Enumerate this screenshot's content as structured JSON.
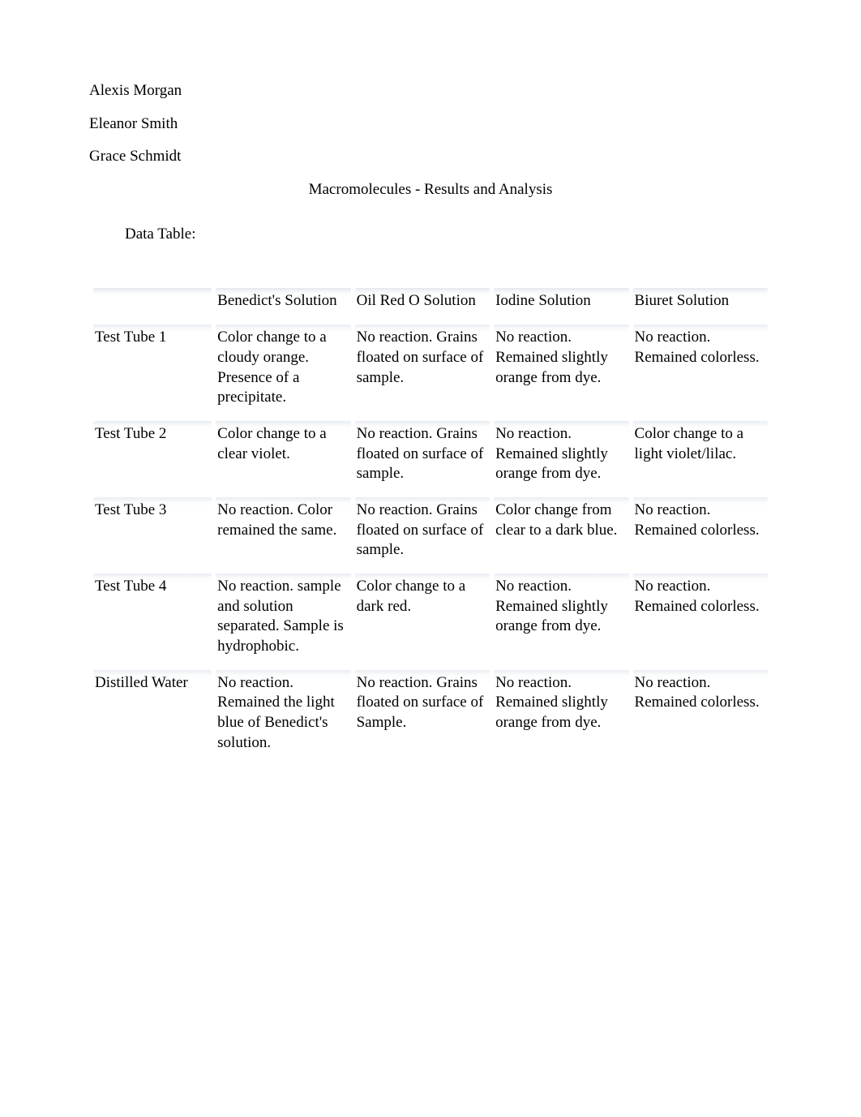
{
  "authors": [
    "Alexis Morgan",
    "Eleanor Smith",
    "Grace Schmidt"
  ],
  "title": "Macromolecules - Results and Analysis",
  "data_table_label": "Data Table:",
  "table": {
    "type": "table",
    "background_color": "#ffffff",
    "header_shade_color": "#e4e9ef",
    "cell_shade_color": "#e9edf2",
    "text_color": "#000000",
    "font_family": "Times New Roman",
    "font_size_pt": 14,
    "column_widths_pct": [
      18,
      20.5,
      20.5,
      20.5,
      20.5
    ],
    "columns": [
      "",
      "Benedict's Solution",
      "Oil Red O Solution",
      "Iodine Solution",
      "Biuret Solution"
    ],
    "rows": [
      {
        "label": "Test Tube 1",
        "cells": [
          "Color change to a cloudy orange. Presence of a precipitate.",
          "No reaction. Grains floated on surface of sample.",
          "No reaction. Remained slightly orange from dye.",
          "No reaction. Remained colorless."
        ]
      },
      {
        "label": "Test Tube 2",
        "cells": [
          "Color change to a clear violet.",
          "No reaction. Grains floated on surface of sample.",
          "No reaction. Remained slightly orange from dye.",
          "Color change to a light violet/lilac."
        ]
      },
      {
        "label": "Test Tube 3",
        "cells": [
          "No reaction. Color remained the same.",
          "No reaction. Grains floated on surface of sample.",
          "Color change from clear to a dark blue.",
          "No reaction. Remained colorless."
        ]
      },
      {
        "label": "Test Tube 4",
        "cells": [
          "No reaction. sample and solution separated. Sample is hydrophobic.",
          "Color change to a dark red.",
          "No reaction. Remained slightly orange from dye.",
          "No reaction. Remained colorless."
        ]
      },
      {
        "label": "Distilled Water",
        "cells": [
          "No reaction. Remained the light blue of Benedict's solution.",
          "No reaction. Grains floated on surface of Sample.",
          "No reaction. Remained slightly orange from dye.",
          "No reaction. Remained colorless."
        ]
      }
    ]
  }
}
